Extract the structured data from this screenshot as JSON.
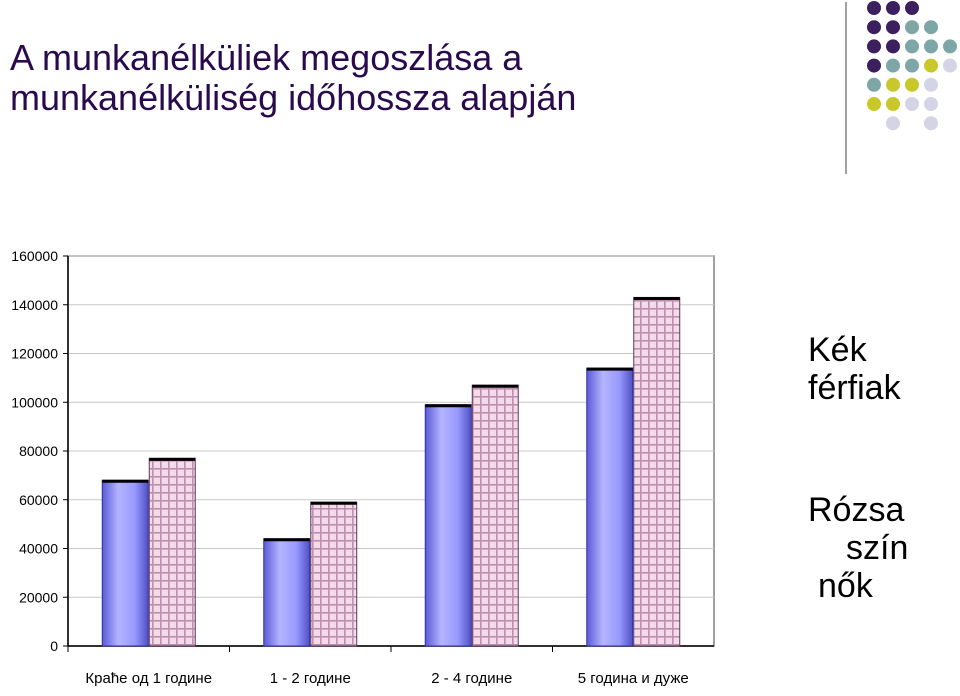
{
  "slide": {
    "title_line1": "A munkanélküliek megoszlása a",
    "title_line2": "munkanélküliség időhossza alapján"
  },
  "legend_notes": {
    "blue_line1": "Kék",
    "blue_line2": "férfiak",
    "pink_line1": "Rózsa",
    "pink_line2": "szín",
    "pink_line3": "nők"
  },
  "decor": {
    "dot_colors": {
      "purple": "#3b1f5e",
      "teal": "#7fa6a6",
      "yellow": "#c8c82a",
      "lavender": "#d4d4e6"
    }
  },
  "chart_data": {
    "type": "bar",
    "categories": [
      "Краће од 1 године",
      "1 - 2 године",
      "2 - 4 године",
      "5 година и дуже"
    ],
    "series": [
      {
        "values": [
          68000,
          44000,
          99000,
          114000
        ],
        "color": "#9999ff"
      },
      {
        "values": [
          77000,
          59000,
          107000,
          143000
        ],
        "color": "#e8c8dc"
      }
    ],
    "ylim": [
      0,
      160000
    ],
    "yticks": [
      0,
      20000,
      40000,
      60000,
      80000,
      100000,
      120000,
      140000,
      160000
    ],
    "grid": true
  }
}
